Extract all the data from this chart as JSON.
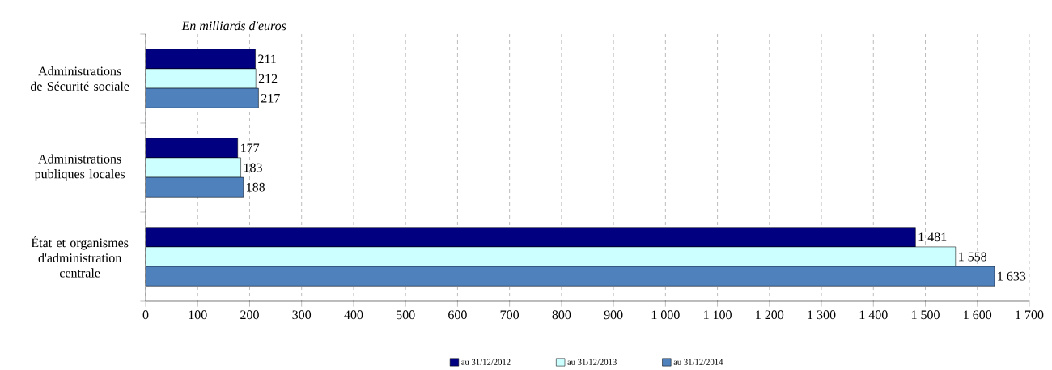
{
  "chart_data": {
    "type": "bar",
    "orientation": "horizontal",
    "annotations": [
      "En milliards d'euros"
    ],
    "categories": [
      "Administrations de Sécurité sociale",
      "Administrations publiques locales",
      "État et organismes d'administration centrale"
    ],
    "series": [
      {
        "name": "au 31/12/2012",
        "color": "#000080",
        "values": [
          211,
          177,
          1481
        ],
        "value_labels": [
          "211",
          "177",
          "1 481"
        ]
      },
      {
        "name": "au 31/12/2013",
        "color": "#ccffff",
        "values": [
          212,
          183,
          1558
        ],
        "value_labels": [
          "212",
          "183",
          "1 558"
        ]
      },
      {
        "name": "au 31/12/2014",
        "color": "#4f81bd",
        "values": [
          217,
          188,
          1633
        ],
        "value_labels": [
          "217",
          "188",
          "1 633"
        ]
      }
    ],
    "xlim": [
      0,
      1700
    ],
    "xticks": [
      0,
      100,
      200,
      300,
      400,
      500,
      600,
      700,
      800,
      900,
      {
        "value": 1000,
        "label": "1 000"
      },
      {
        "value": 1100,
        "label": "1 100"
      },
      {
        "value": 1200,
        "label": "1 200"
      },
      {
        "value": 1300,
        "label": "1 300"
      },
      {
        "value": 1400,
        "label": "1 400"
      },
      {
        "value": 1500,
        "label": "1 500"
      },
      {
        "value": 1600,
        "label": "1 600"
      },
      {
        "value": 1700,
        "label": "1 700"
      }
    ],
    "grid": "x",
    "legend": "bottom"
  }
}
